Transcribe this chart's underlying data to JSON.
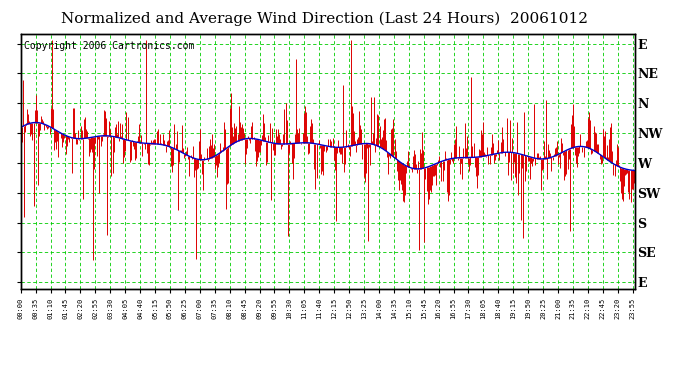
{
  "title": "Normalized and Average Wind Direction (Last 24 Hours)  20061012",
  "copyright": "Copyright 2006 Cartronics.com",
  "y_labels": [
    "E",
    "SE",
    "S",
    "SW",
    "W",
    "NW",
    "N",
    "NE",
    "E"
  ],
  "y_values": [
    0,
    45,
    90,
    135,
    180,
    225,
    270,
    315,
    360
  ],
  "bg_color": "#ffffff",
  "plot_bg_color": "#ffffff",
  "grid_color": "#00cc00",
  "red_color": "#dd0000",
  "blue_color": "#0000cc",
  "border_color": "#000000",
  "title_fontsize": 11,
  "copyright_fontsize": 7,
  "tick_interval_min": 35,
  "n_points": 576,
  "seed": 12345
}
